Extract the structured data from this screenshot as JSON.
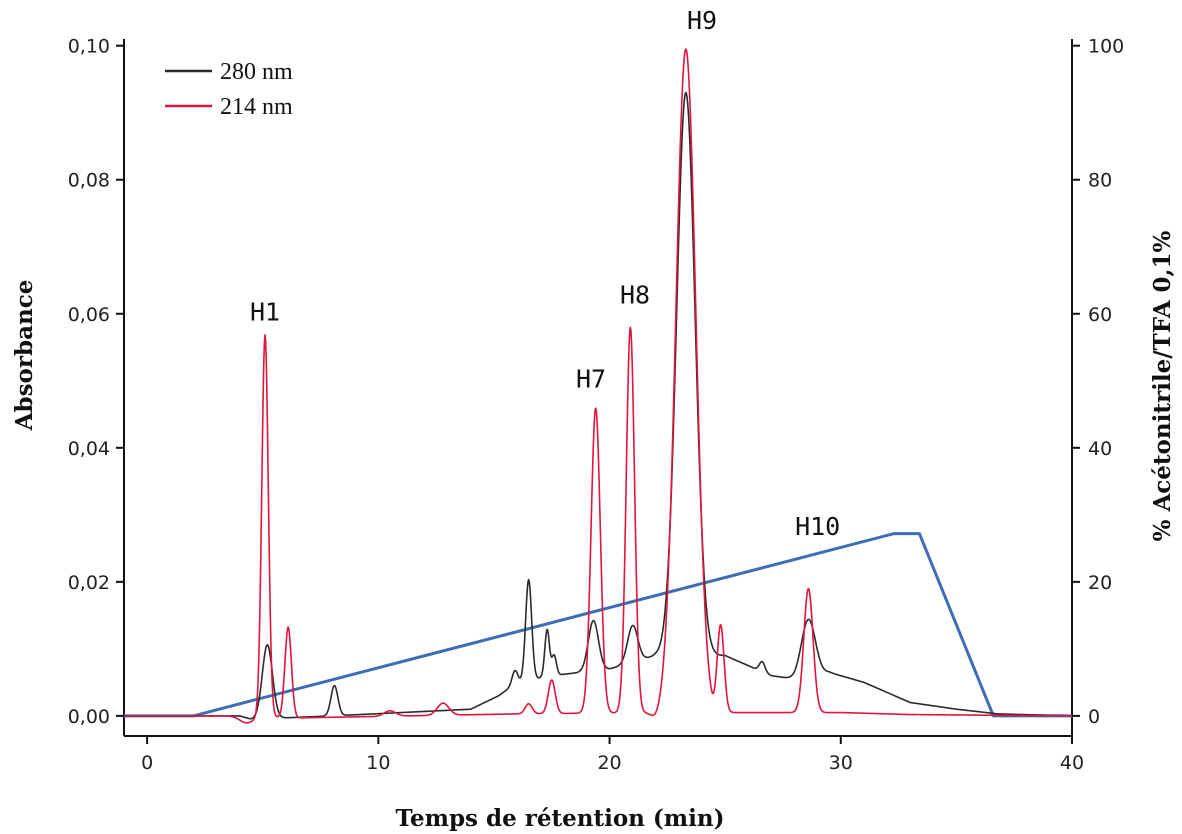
{
  "chart_data": {
    "type": "line",
    "xlabel": "Temps de rétention (min)",
    "ylabel": "Absorbance",
    "y2label": "% Acétonitrile/TFA 0,1%",
    "xlim": [
      -1,
      40
    ],
    "ylim": [
      -0.003,
      0.101
    ],
    "y2lim": [
      -3,
      101
    ],
    "xticks": [
      0,
      10,
      20,
      30,
      40
    ],
    "xtick_labels": [
      "0",
      "10",
      "20",
      "30",
      "40"
    ],
    "yticks": [
      0,
      0.02,
      0.04,
      0.06,
      0.08,
      0.1
    ],
    "ytick_labels": [
      "0,00",
      "0,02",
      "0,04",
      "0,06",
      "0,08",
      "0,10"
    ],
    "y2ticks": [
      0,
      20,
      40,
      60,
      80,
      100
    ],
    "y2tick_labels": [
      "0",
      "20",
      "40",
      "60",
      "80",
      "100"
    ],
    "legend": {
      "position": "top-left"
    },
    "series": [
      {
        "name": "280 nm",
        "color": "#2b2b2b",
        "axis": "left",
        "baseline": 0.0,
        "base_segments": [
          [
            -1,
            0.0
          ],
          [
            4,
            0.0
          ],
          [
            4.5,
            -0.0005
          ],
          [
            8,
            0.0
          ],
          [
            14,
            0.001
          ],
          [
            15.2,
            0.003
          ],
          [
            16,
            0.005
          ],
          [
            17.5,
            0.006
          ],
          [
            20,
            0.007
          ],
          [
            22,
            0.009
          ],
          [
            25,
            0.009
          ],
          [
            27,
            0.006
          ],
          [
            28,
            0.0055
          ],
          [
            29.5,
            0.0065
          ],
          [
            31,
            0.005
          ],
          [
            33,
            0.002
          ],
          [
            35,
            0.001
          ],
          [
            36.8,
            0.0003
          ],
          [
            40,
            0.0
          ]
        ],
        "peaks": [
          {
            "x": 5.2,
            "h": 0.011,
            "w": 0.22
          },
          {
            "x": 8.1,
            "h": 0.0045,
            "w": 0.15
          },
          {
            "x": 15.9,
            "h": 0.002,
            "w": 0.12
          },
          {
            "x": 16.5,
            "h": 0.015,
            "w": 0.13
          },
          {
            "x": 17.3,
            "h": 0.007,
            "w": 0.1
          },
          {
            "x": 17.6,
            "h": 0.003,
            "w": 0.1
          },
          {
            "x": 19.3,
            "h": 0.0075,
            "w": 0.22
          },
          {
            "x": 21.0,
            "h": 0.0055,
            "w": 0.22
          },
          {
            "x": 23.3,
            "h": 0.084,
            "w": 0.4
          },
          {
            "x": 26.6,
            "h": 0.0015,
            "w": 0.12
          },
          {
            "x": 28.6,
            "h": 0.0085,
            "w": 0.3
          }
        ]
      },
      {
        "name": "214 nm",
        "color": "#e0163a",
        "axis": "left",
        "baseline": 0.0,
        "base_segments": [
          [
            -1,
            0.0
          ],
          [
            4,
            0.0
          ],
          [
            6.5,
            -0.0003
          ],
          [
            16,
            0.0003
          ],
          [
            22,
            0.0005
          ],
          [
            25,
            0.0005
          ],
          [
            30,
            0.0005
          ],
          [
            33,
            0.0002
          ],
          [
            40,
            0.0
          ]
        ],
        "dips": [
          {
            "x": 4.3,
            "h": -0.001,
            "w": 0.3
          },
          {
            "x": 22.0,
            "h": -0.001,
            "w": 0.2
          },
          {
            "x": 24.6,
            "h": -0.001,
            "w": 0.2
          }
        ],
        "peaks": [
          {
            "x": 5.1,
            "h": 0.057,
            "w": 0.14
          },
          {
            "x": 6.1,
            "h": 0.0135,
            "w": 0.14
          },
          {
            "x": 10.5,
            "h": 0.0008,
            "w": 0.25
          },
          {
            "x": 12.8,
            "h": 0.0018,
            "w": 0.25
          },
          {
            "x": 16.5,
            "h": 0.0015,
            "w": 0.15
          },
          {
            "x": 17.5,
            "h": 0.005,
            "w": 0.15
          },
          {
            "x": 19.4,
            "h": 0.0455,
            "w": 0.2
          },
          {
            "x": 20.9,
            "h": 0.0575,
            "w": 0.18
          },
          {
            "x": 23.3,
            "h": 0.099,
            "w": 0.43
          },
          {
            "x": 24.8,
            "h": 0.0135,
            "w": 0.15
          },
          {
            "x": 28.6,
            "h": 0.0185,
            "w": 0.2
          }
        ]
      },
      {
        "name": "gradient",
        "color": "#3d6db5",
        "axis": "right",
        "points": [
          [
            -1,
            0
          ],
          [
            2,
            0
          ],
          [
            32.3,
            27.2
          ],
          [
            33.4,
            27.2
          ],
          [
            36.6,
            0
          ],
          [
            40,
            0
          ]
        ]
      }
    ],
    "annotations": [
      {
        "text": "H1",
        "x": 5.1,
        "y": 0.059
      },
      {
        "text": "H7",
        "x": 19.2,
        "y": 0.049
      },
      {
        "text": "H8",
        "x": 21.1,
        "y": 0.0615
      },
      {
        "text": "H9",
        "x": 24.0,
        "y": 0.1025
      },
      {
        "text": "H10",
        "x": 29.0,
        "y": 0.027
      }
    ]
  }
}
